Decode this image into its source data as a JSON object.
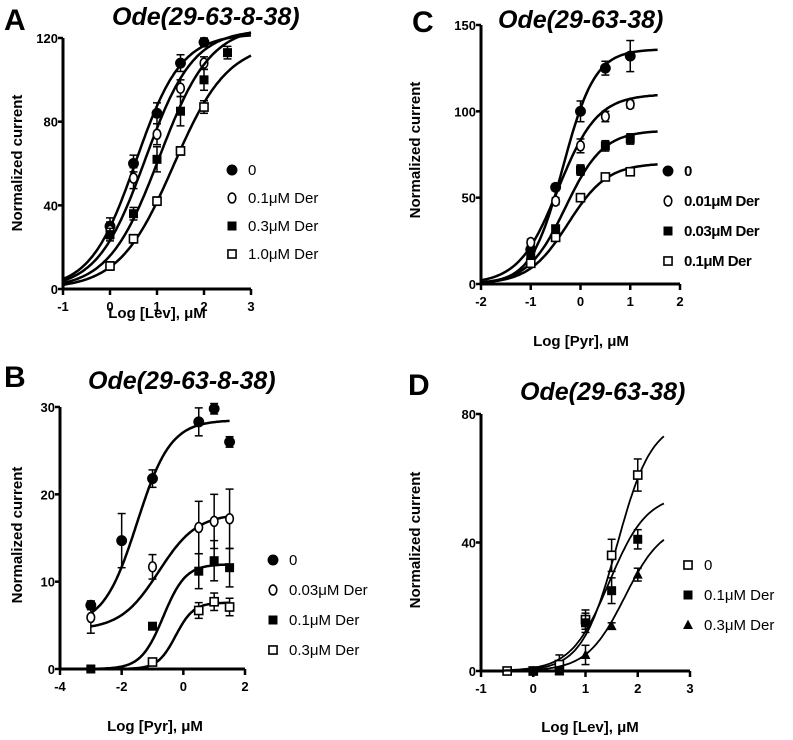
{
  "chart_data": [
    {
      "panel": "A",
      "type": "scatter",
      "title": "Ode(29-63-8-38)",
      "xlabel": "Log [Lev], μM",
      "ylabel": "Normalized current",
      "xlim": [
        -1,
        3
      ],
      "ylim": [
        0,
        120
      ],
      "xticks": [
        -1,
        0,
        1,
        2,
        3
      ],
      "yticks": [
        0,
        40,
        80,
        120
      ],
      "grid": false,
      "legend_position": "right",
      "series": [
        {
          "name": "0",
          "marker": "filled-circle",
          "x": [
            0,
            0.5,
            1,
            1.5,
            2
          ],
          "y": [
            30,
            60,
            84,
            108,
            118
          ],
          "err": [
            4,
            4,
            5,
            4,
            2
          ],
          "fit": {
            "bottom": 0,
            "top": 122,
            "ec50": 0.55,
            "hill": 0.9
          }
        },
        {
          "name": "0.1μM Der",
          "marker": "open-circle",
          "x": [
            0,
            0.5,
            1,
            1.5,
            2
          ],
          "y": [
            28,
            53,
            74,
            96,
            108
          ],
          "err": [
            4,
            5,
            5,
            4,
            3
          ],
          "fit": {
            "bottom": 0,
            "top": 124,
            "ec50": 0.75,
            "hill": 0.85
          }
        },
        {
          "name": "0.3μM Der",
          "marker": "filled-square",
          "x": [
            0,
            0.5,
            1,
            1.5,
            2,
            2.5
          ],
          "y": [
            26,
            36,
            62,
            85,
            100,
            113
          ],
          "err": [
            3,
            3,
            6,
            7,
            5,
            3
          ],
          "fit": {
            "bottom": 0,
            "top": 126,
            "ec50": 1.05,
            "hill": 0.8
          }
        },
        {
          "name": "1.0μM Der",
          "marker": "open-square",
          "x": [
            0,
            0.5,
            1,
            1.5,
            2
          ],
          "y": [
            11,
            24,
            42,
            66,
            87
          ],
          "err": [
            2,
            2,
            2,
            2,
            3
          ],
          "fit": {
            "bottom": 0,
            "top": 118,
            "ec50": 1.35,
            "hill": 0.75
          }
        }
      ]
    },
    {
      "panel": "B",
      "type": "scatter",
      "title": "Ode(29-63-8-38)",
      "xlabel": "Log [Pyr], μM",
      "ylabel": "Normalized current",
      "xlim": [
        -4,
        2
      ],
      "ylim": [
        0,
        30
      ],
      "xticks": [
        -4,
        -2,
        0,
        2
      ],
      "yticks": [
        0,
        10,
        20,
        30
      ],
      "grid": false,
      "legend_position": "right",
      "series": [
        {
          "name": "0",
          "marker": "filled-circle",
          "x": [
            -3,
            -2,
            -1,
            0.5,
            1,
            1.5
          ],
          "y": [
            7.3,
            14.7,
            21.8,
            28.3,
            29.8,
            26.0
          ],
          "err": [
            0.5,
            3.1,
            1.0,
            1.6,
            0.6,
            0.6
          ],
          "fit": {
            "bottom": 5,
            "top": 28.5,
            "ec50": -1.5,
            "hill": 0.8
          }
        },
        {
          "name": "0.03μM Der",
          "marker": "open-circle",
          "x": [
            -3,
            -1,
            0.5,
            1,
            1.5
          ],
          "y": [
            5.9,
            11.7,
            16.2,
            16.9,
            17.2
          ],
          "err": [
            1.8,
            1.4,
            3.0,
            3.1,
            3.4
          ],
          "fit": {
            "bottom": 4.5,
            "top": 17.8,
            "ec50": -0.8,
            "hill": 0.7
          }
        },
        {
          "name": "0.1μM Der",
          "marker": "filled-square",
          "x": [
            -3,
            -1,
            0.5,
            1,
            1.5
          ],
          "y": [
            0,
            4.9,
            11.2,
            12.4,
            11.6
          ],
          "err": [
            0.2,
            0.3,
            2.0,
            2.3,
            2.2
          ],
          "fit": {
            "bottom": 0,
            "top": 12.0,
            "ec50": -0.65,
            "hill": 1.2
          }
        },
        {
          "name": "0.3μM Der",
          "marker": "open-square",
          "x": [
            -1,
            0.5,
            1,
            1.5
          ],
          "y": [
            0.8,
            6.7,
            7.7,
            7.1
          ],
          "err": [
            0.2,
            0.9,
            1.0,
            1.0
          ],
          "fit": {
            "bottom": 0,
            "top": 7.6,
            "ec50": -0.25,
            "hill": 1.5
          }
        }
      ]
    },
    {
      "panel": "C",
      "type": "scatter",
      "title": "Ode(29-63-38)",
      "xlabel": "Log [Pyr], μM",
      "ylabel": "Normalized current",
      "xlim": [
        -2,
        2
      ],
      "ylim": [
        0,
        150
      ],
      "xticks": [
        -2,
        -1,
        0,
        1,
        2
      ],
      "yticks": [
        0,
        50,
        100,
        150
      ],
      "grid": false,
      "legend_position": "right",
      "series": [
        {
          "name": "0",
          "marker": "filled-circle",
          "x": [
            -1,
            -0.5,
            0,
            0.5,
            1
          ],
          "y": [
            20,
            56,
            100,
            125,
            132
          ],
          "err": [
            2,
            2,
            6,
            4,
            9
          ],
          "fit": {
            "bottom": 0,
            "top": 136,
            "ec50": -0.35,
            "hill": 1.35
          }
        },
        {
          "name": "0.01μM Der",
          "marker": "open-circle",
          "x": [
            -1,
            -0.5,
            0,
            0.5,
            1
          ],
          "y": [
            24,
            48,
            80,
            97,
            104
          ],
          "err": [
            2,
            2,
            4,
            3,
            2
          ],
          "fit": {
            "bottom": 0,
            "top": 110,
            "ec50": -0.45,
            "hill": 1.1
          }
        },
        {
          "name": "0.03μM Der",
          "marker": "filled-square",
          "x": [
            -1,
            -0.5,
            0,
            0.5,
            1
          ],
          "y": [
            16,
            32,
            66,
            80,
            84
          ],
          "err": [
            1,
            2,
            3,
            3,
            3
          ],
          "fit": {
            "bottom": 0,
            "top": 89,
            "ec50": -0.3,
            "hill": 1.15
          }
        },
        {
          "name": "0.1μM Der",
          "marker": "open-square",
          "x": [
            -1,
            -0.5,
            0,
            0.5,
            1
          ],
          "y": [
            12,
            27,
            50,
            62,
            65
          ],
          "err": [
            1,
            2,
            2,
            2,
            2
          ],
          "fit": {
            "bottom": 0,
            "top": 70,
            "ec50": -0.25,
            "hill": 1.1
          }
        }
      ]
    },
    {
      "panel": "D",
      "type": "scatter",
      "title": "Ode(29-63-38)",
      "xlabel": "Log [Lev], μM",
      "ylabel": "Normalized current",
      "xlim": [
        -1,
        3
      ],
      "ylim": [
        0,
        80
      ],
      "xticks": [
        -1,
        0,
        1,
        2,
        3
      ],
      "yticks": [
        0,
        40,
        80
      ],
      "grid": false,
      "legend_position": "right",
      "series": [
        {
          "name": "0",
          "marker": "open-square",
          "x": [
            -0.5,
            0,
            0.5,
            1,
            1.5,
            2
          ],
          "y": [
            0,
            0,
            2,
            16,
            36,
            61
          ],
          "err": [
            0.5,
            0.5,
            3,
            3,
            5,
            5
          ],
          "fit": {
            "bottom": 0,
            "top": 78,
            "ec50": 1.6,
            "hill": 1.3
          }
        },
        {
          "name": "0.1μM Der",
          "marker": "filled-square",
          "x": [
            0,
            0.5,
            1,
            1.5,
            2
          ],
          "y": [
            0,
            0,
            15,
            25,
            41
          ],
          "err": [
            0.5,
            0.5,
            3,
            4,
            3
          ],
          "fit": {
            "bottom": 0,
            "top": 55,
            "ec50": 1.45,
            "hill": 1.2
          }
        },
        {
          "name": "0.3μM Der",
          "marker": "filled-triangle",
          "x": [
            0,
            0.5,
            1,
            1.5,
            2
          ],
          "y": [
            0,
            0,
            5,
            14,
            30
          ],
          "err": [
            0.5,
            0.5,
            3,
            1,
            2
          ],
          "fit": {
            "bottom": 0,
            "top": 46,
            "ec50": 1.75,
            "hill": 1.2
          }
        }
      ]
    }
  ],
  "panels": {
    "A": {
      "letter": "A",
      "title": "Ode(29-63-8-38)",
      "title_suffix": ")",
      "xlabel": "Log [Lev], μM",
      "ylabel": "Normalized current",
      "legend": [
        "0",
        "0.1μM Der",
        "0.3μM Der",
        "1.0μM Der"
      ]
    },
    "B": {
      "letter": "B",
      "title": "Ode(29-63-8-38)",
      "xlabel": "Log [Pyr], μM",
      "ylabel": "Normalized current",
      "legend": [
        "0",
        "0.03μM Der",
        "0.1μM Der",
        "0.3μM Der"
      ]
    },
    "C": {
      "letter": "C",
      "title": "Ode(29-63-38)",
      "xlabel": "Log [Pyr], μM",
      "ylabel": "Normalized current",
      "legend": [
        "0",
        "0.01μM Der",
        "0.03μM Der",
        "0.1μM Der"
      ]
    },
    "D": {
      "letter": "D",
      "title": "Ode(29-63-38)",
      "xlabel": "Log [Lev], μM",
      "ylabel": "Normalized current",
      "legend": [
        "0",
        "0.1μM Der",
        "0.3μM Der"
      ]
    }
  }
}
